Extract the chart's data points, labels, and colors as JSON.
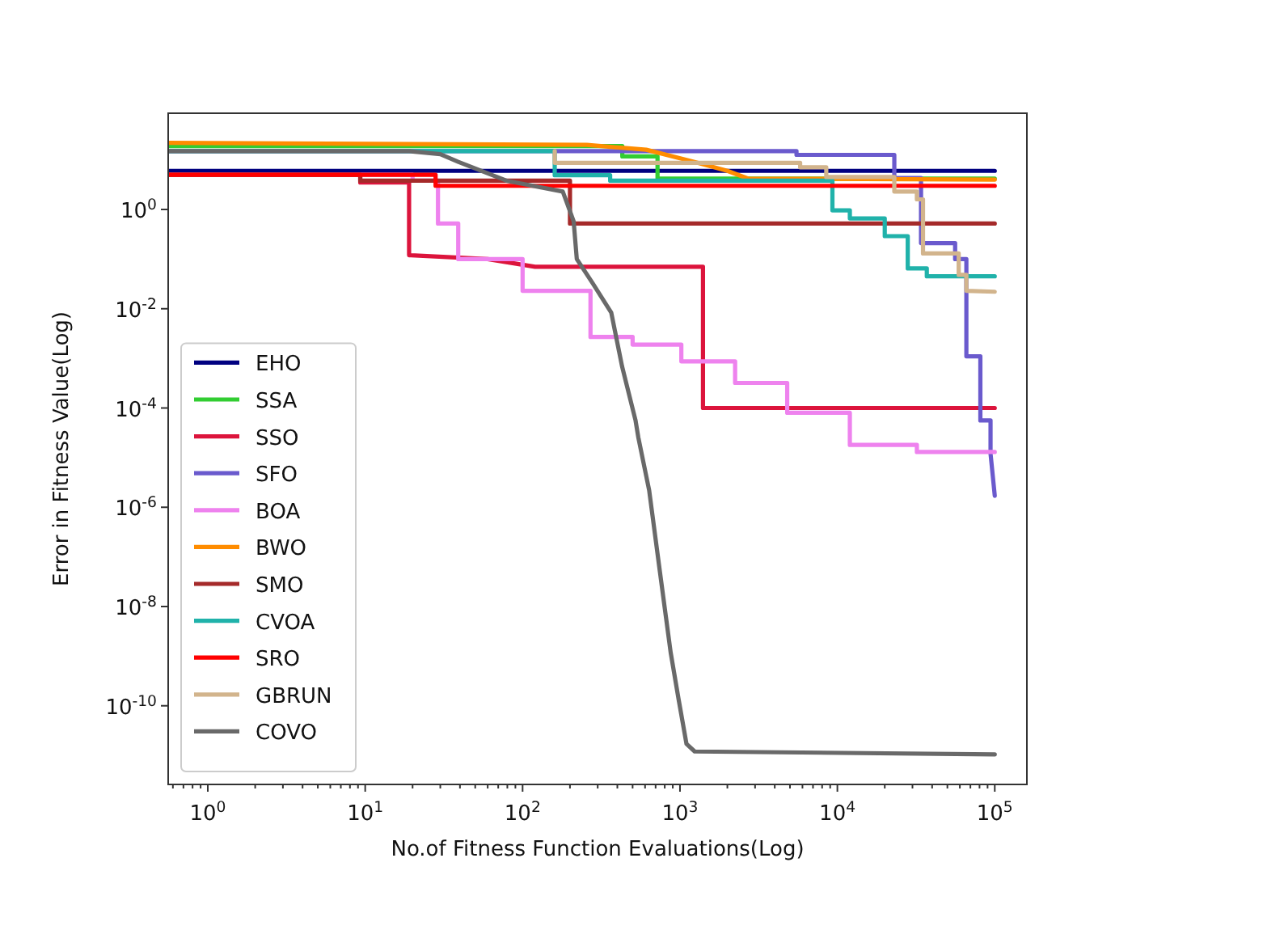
{
  "chart_data": {
    "type": "line",
    "xlabel": "No.of Fitness Function Evaluations(Log)",
    "ylabel": "Error in Fitness Value(Log)",
    "log": "xy",
    "xlim": [
      0.56,
      160000
    ],
    "ylim": [
      2.6e-12,
      87
    ],
    "xticks": [
      {
        "value": 1,
        "label": "10$^{0}$"
      },
      {
        "value": 10,
        "label": "10$^{1}$"
      },
      {
        "value": 100,
        "label": "10$^{2}$"
      },
      {
        "value": 1000,
        "label": "10$^{3}$"
      },
      {
        "value": 10000,
        "label": "10$^{4}$"
      },
      {
        "value": 100000,
        "label": "10$^{5}$"
      }
    ],
    "yticks": [
      {
        "value": 1e-10,
        "label": "10$^{-10}$"
      },
      {
        "value": 1e-08,
        "label": "10$^{-8}$"
      },
      {
        "value": 1e-06,
        "label": "10$^{-6}$"
      },
      {
        "value": 0.0001,
        "label": "10$^{-4}$"
      },
      {
        "value": 0.01,
        "label": "10$^{-2}$"
      },
      {
        "value": 1,
        "label": "10$^{0}$"
      }
    ],
    "legend": "bottom left",
    "grid": false,
    "marker": "none",
    "line_style": "solid",
    "series": [
      {
        "name": "EHO",
        "color": "#000080",
        "x": [
          0.56,
          100000
        ],
        "values": [
          6,
          6
        ]
      },
      {
        "name": "SSA",
        "color": "#32cd32",
        "x": [
          0.56,
          430,
          430,
          720,
          720,
          100000
        ],
        "values": [
          19,
          19,
          11.7,
          11.7,
          4.2,
          4.2
        ]
      },
      {
        "name": "SSO",
        "color": "#dc143c",
        "x": [
          0.56,
          9.3,
          9.3,
          19,
          19,
          60,
          120,
          1400,
          1400,
          100000
        ],
        "values": [
          5,
          5,
          3.5,
          3.5,
          0.12,
          0.1,
          0.07,
          0.07,
          0.0001,
          0.0001
        ]
      },
      {
        "name": "SFO",
        "color": "#6a5acd",
        "x": [
          0.56,
          5500,
          5500,
          23000,
          23000,
          34000,
          34000,
          56000,
          56000,
          66000,
          66000,
          81000,
          81000,
          94000,
          94000,
          100000
        ],
        "values": [
          15,
          15,
          12.6,
          12.6,
          4.3,
          4.3,
          0.21,
          0.21,
          0.1,
          0.1,
          0.0011,
          0.0011,
          5.6e-05,
          5.6e-05,
          1.2e-05,
          1.7e-06
        ]
      },
      {
        "name": "BOA",
        "color": "#ee82ee",
        "x": [
          0.56,
          20,
          20,
          29,
          29,
          39,
          39,
          100,
          100,
          270,
          270,
          500,
          500,
          1020,
          1020,
          2240,
          2240,
          4800,
          4800,
          12000,
          12000,
          32000,
          32000,
          100000
        ],
        "values": [
          5,
          5,
          3.8,
          3.8,
          0.52,
          0.52,
          0.1,
          0.1,
          0.023,
          0.023,
          0.0027,
          0.0027,
          0.0019,
          0.0019,
          0.00087,
          0.00087,
          0.00032,
          0.00032,
          8e-05,
          8e-05,
          1.8e-05,
          1.8e-05,
          1.3e-05,
          1.3e-05
        ]
      },
      {
        "name": "BWO",
        "color": "#ff8c00",
        "x": [
          0.56,
          256,
          610,
          1250,
          2000,
          2700,
          100000
        ],
        "values": [
          22,
          20,
          16,
          9,
          6,
          4.2,
          4
        ]
      },
      {
        "name": "SMO",
        "color": "#a52a2a",
        "x": [
          0.56,
          9.3,
          9.3,
          200,
          200,
          100000
        ],
        "values": [
          5,
          5,
          3.8,
          3.8,
          0.52,
          0.52
        ]
      },
      {
        "name": "CVOA",
        "color": "#20b2aa",
        "x": [
          0.56,
          160,
          160,
          360,
          360,
          9300,
          9300,
          12000,
          12000,
          20000,
          20000,
          28000,
          28000,
          37000,
          37000,
          100000
        ],
        "values": [
          15,
          15,
          4.9,
          4.9,
          3.8,
          3.8,
          0.96,
          0.96,
          0.66,
          0.66,
          0.29,
          0.29,
          0.065,
          0.065,
          0.045,
          0.045
        ]
      },
      {
        "name": "SRO",
        "color": "#ff0000",
        "x": [
          0.56,
          28,
          28,
          100000
        ],
        "values": [
          5,
          5,
          3,
          3
        ]
      },
      {
        "name": "GBRUN",
        "color": "#d2b48c",
        "x": [
          160,
          160,
          5800,
          5800,
          8500,
          8500,
          23000,
          23000,
          32000,
          32000,
          35000,
          35000,
          59000,
          59000,
          66000,
          66000,
          100000
        ],
        "values": [
          15,
          8.7,
          8.7,
          7.1,
          7.1,
          4.5,
          4.5,
          2.3,
          2.3,
          1.6,
          1.6,
          0.13,
          0.13,
          0.048,
          0.048,
          0.023,
          0.022
        ]
      },
      {
        "name": "COVO",
        "color": "#696969",
        "x": [
          0.56,
          19,
          30,
          39,
          79,
          180,
          211,
          221,
          278,
          366,
          429,
          522,
          543,
          637,
          745,
          872,
          982,
          1100,
          1240,
          100000
        ],
        "values": [
          15,
          15,
          13,
          9.1,
          3.8,
          2.3,
          0.58,
          0.1,
          0.033,
          0.0083,
          0.00068,
          5.6e-05,
          2.6e-05,
          2.2e-06,
          5.1e-08,
          1.2e-09,
          1.3e-10,
          1.7e-11,
          1.2e-11,
          1.05e-11
        ]
      }
    ]
  }
}
